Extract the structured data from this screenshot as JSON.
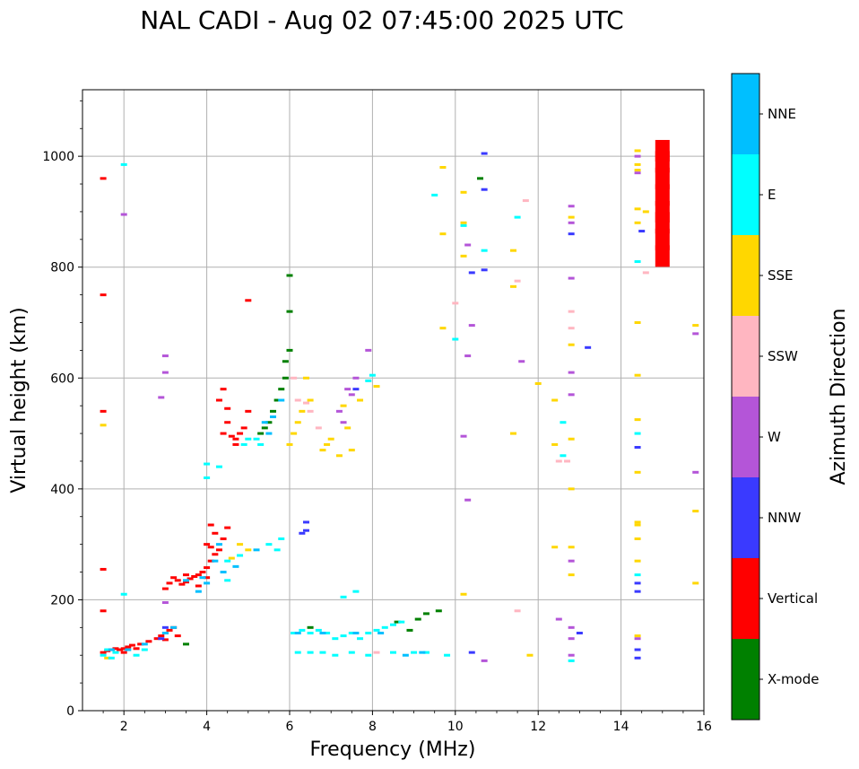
{
  "chart_data": {
    "type": "scatter",
    "title": "NAL CADI - Aug 02 07:45:00 2025 UTC",
    "xlabel": "Frequency (MHz)",
    "ylabel": "Virtual height (km)",
    "xlim": [
      1,
      16
    ],
    "ylim": [
      0,
      1120
    ],
    "grid": true,
    "xticks": [
      2,
      4,
      6,
      8,
      10,
      12,
      14,
      16
    ],
    "yticks": [
      0,
      200,
      400,
      600,
      800,
      1000
    ],
    "colorbar": {
      "label": "Azimuth Direction",
      "categories": [
        {
          "name": "X-mode",
          "color": "#008000"
        },
        {
          "name": "Vertical",
          "color": "#ff0000"
        },
        {
          "name": "NNW",
          "color": "#3a3aff"
        },
        {
          "name": "W",
          "color": "#b455d8"
        },
        {
          "name": "SSW",
          "color": "#ffb6c1"
        },
        {
          "name": "SSE",
          "color": "#ffd700"
        },
        {
          "name": "E",
          "color": "#00ffff"
        },
        {
          "name": "NNE",
          "color": "#00bfff"
        }
      ]
    },
    "series": [
      {
        "name": "Vertical",
        "points": [
          [
            1.5,
            105
          ],
          [
            1.6,
            108
          ],
          [
            1.7,
            110
          ],
          [
            1.8,
            112
          ],
          [
            1.9,
            110
          ],
          [
            2.0,
            112
          ],
          [
            2.1,
            115
          ],
          [
            2.2,
            118
          ],
          [
            2.3,
            112
          ],
          [
            2.0,
            105
          ],
          [
            2.4,
            120
          ],
          [
            2.6,
            125
          ],
          [
            2.8,
            130
          ],
          [
            2.9,
            135
          ],
          [
            3.0,
            140
          ],
          [
            3.1,
            145
          ],
          [
            3.2,
            150
          ],
          [
            3.3,
            135
          ],
          [
            3.0,
            128
          ],
          [
            3.0,
            220
          ],
          [
            3.1,
            230
          ],
          [
            3.2,
            240
          ],
          [
            3.3,
            235
          ],
          [
            3.4,
            228
          ],
          [
            3.5,
            232
          ],
          [
            3.6,
            238
          ],
          [
            3.7,
            242
          ],
          [
            3.8,
            245
          ],
          [
            3.9,
            250
          ],
          [
            4.0,
            258
          ],
          [
            4.1,
            270
          ],
          [
            4.2,
            282
          ],
          [
            4.1,
            295
          ],
          [
            4.0,
            300
          ],
          [
            4.2,
            320
          ],
          [
            4.1,
            335
          ],
          [
            4.3,
            290
          ],
          [
            4.4,
            310
          ],
          [
            4.5,
            330
          ],
          [
            3.8,
            225
          ],
          [
            4.0,
            240
          ],
          [
            3.5,
            245
          ],
          [
            4.4,
            500
          ],
          [
            4.5,
            520
          ],
          [
            4.6,
            495
          ],
          [
            4.7,
            490
          ],
          [
            4.8,
            500
          ],
          [
            4.9,
            510
          ],
          [
            5.0,
            540
          ],
          [
            4.4,
            580
          ],
          [
            4.5,
            545
          ],
          [
            4.3,
            560
          ],
          [
            4.7,
            480
          ],
          [
            1.5,
            960
          ],
          [
            1.5,
            750
          ],
          [
            1.5,
            540
          ],
          [
            1.5,
            255
          ],
          [
            1.5,
            180
          ],
          [
            5.0,
            740
          ],
          [
            15.0,
            990
          ],
          [
            15.0,
            960
          ],
          [
            15.0,
            930
          ],
          [
            15.0,
            900
          ],
          [
            15.0,
            880
          ],
          [
            15.0,
            850
          ],
          [
            15.0,
            820
          ],
          [
            15.0,
            1010
          ]
        ]
      },
      {
        "name": "X-mode",
        "points": [
          [
            5.3,
            500
          ],
          [
            5.4,
            510
          ],
          [
            5.5,
            520
          ],
          [
            5.6,
            540
          ],
          [
            5.7,
            560
          ],
          [
            5.8,
            580
          ],
          [
            5.9,
            600
          ],
          [
            6.0,
            650
          ],
          [
            5.9,
            630
          ],
          [
            6.0,
            720
          ],
          [
            6.0,
            785
          ],
          [
            3.5,
            120
          ],
          [
            8.6,
            160
          ],
          [
            8.9,
            145
          ],
          [
            9.1,
            165
          ],
          [
            9.3,
            175
          ],
          [
            9.6,
            180
          ],
          [
            10.6,
            960
          ],
          [
            6.5,
            150
          ]
        ]
      },
      {
        "name": "NNW",
        "points": [
          [
            2.9,
            130
          ],
          [
            3.0,
            150
          ],
          [
            6.4,
            340
          ],
          [
            6.4,
            325
          ],
          [
            6.3,
            320
          ],
          [
            7.6,
            580
          ],
          [
            10.7,
            1005
          ],
          [
            10.7,
            940
          ],
          [
            10.7,
            795
          ],
          [
            10.4,
            790
          ],
          [
            13.2,
            655
          ],
          [
            14.4,
            215
          ],
          [
            14.4,
            230
          ],
          [
            14.4,
            95
          ],
          [
            14.4,
            110
          ],
          [
            14.5,
            865
          ],
          [
            12.8,
            860
          ],
          [
            14.4,
            475
          ],
          [
            10.4,
            105
          ],
          [
            13.0,
            140
          ]
        ]
      },
      {
        "name": "W",
        "points": [
          [
            3.0,
            610
          ],
          [
            3.0,
            640
          ],
          [
            3.0,
            195
          ],
          [
            2.9,
            565
          ],
          [
            7.4,
            580
          ],
          [
            7.5,
            570
          ],
          [
            7.2,
            540
          ],
          [
            7.3,
            520
          ],
          [
            7.6,
            600
          ],
          [
            7.9,
            650
          ],
          [
            12.8,
            910
          ],
          [
            12.8,
            880
          ],
          [
            12.8,
            780
          ],
          [
            12.8,
            610
          ],
          [
            12.8,
            570
          ],
          [
            12.8,
            270
          ],
          [
            12.8,
            150
          ],
          [
            12.8,
            130
          ],
          [
            14.4,
            1000
          ],
          [
            14.4,
            970
          ],
          [
            14.4,
            130
          ],
          [
            15.8,
            430
          ],
          [
            15.8,
            680
          ],
          [
            10.3,
            840
          ],
          [
            10.4,
            695
          ],
          [
            10.3,
            640
          ],
          [
            10.3,
            380
          ],
          [
            10.2,
            495
          ],
          [
            11.6,
            630
          ],
          [
            12.5,
            165
          ],
          [
            12.8,
            100
          ],
          [
            10.7,
            90
          ],
          [
            2.0,
            895
          ]
        ]
      },
      {
        "name": "SSW",
        "points": [
          [
            6.2,
            560
          ],
          [
            6.4,
            555
          ],
          [
            6.5,
            540
          ],
          [
            6.7,
            510
          ],
          [
            10.0,
            735
          ],
          [
            12.5,
            450
          ],
          [
            12.7,
            450
          ],
          [
            12.8,
            720
          ],
          [
            12.8,
            690
          ],
          [
            11.5,
            775
          ],
          [
            11.7,
            920
          ],
          [
            11.5,
            180
          ],
          [
            14.6,
            790
          ],
          [
            8.1,
            105
          ],
          [
            6.1,
            600
          ]
        ]
      },
      {
        "name": "SSE",
        "points": [
          [
            6.0,
            480
          ],
          [
            6.1,
            500
          ],
          [
            6.2,
            520
          ],
          [
            6.3,
            540
          ],
          [
            6.4,
            600
          ],
          [
            6.5,
            560
          ],
          [
            6.8,
            470
          ],
          [
            6.9,
            480
          ],
          [
            7.0,
            490
          ],
          [
            7.2,
            460
          ],
          [
            7.3,
            550
          ],
          [
            7.4,
            510
          ],
          [
            7.5,
            470
          ],
          [
            7.7,
            560
          ],
          [
            8.1,
            585
          ],
          [
            9.7,
            980
          ],
          [
            9.7,
            860
          ],
          [
            9.7,
            690
          ],
          [
            10.2,
            935
          ],
          [
            10.2,
            880
          ],
          [
            10.2,
            820
          ],
          [
            10.2,
            210
          ],
          [
            11.4,
            830
          ],
          [
            11.4,
            765
          ],
          [
            11.4,
            500
          ],
          [
            12.0,
            590
          ],
          [
            12.4,
            560
          ],
          [
            12.4,
            480
          ],
          [
            12.4,
            295
          ],
          [
            12.8,
            660
          ],
          [
            12.8,
            490
          ],
          [
            12.8,
            400
          ],
          [
            12.8,
            295
          ],
          [
            12.8,
            245
          ],
          [
            12.8,
            890
          ],
          [
            14.4,
            1010
          ],
          [
            14.4,
            985
          ],
          [
            14.4,
            975
          ],
          [
            14.4,
            905
          ],
          [
            14.4,
            880
          ],
          [
            14.4,
            700
          ],
          [
            14.4,
            605
          ],
          [
            14.4,
            525
          ],
          [
            14.4,
            430
          ],
          [
            14.4,
            340
          ],
          [
            14.4,
            335
          ],
          [
            14.4,
            310
          ],
          [
            14.4,
            270
          ],
          [
            14.4,
            135
          ],
          [
            14.6,
            900
          ],
          [
            15.8,
            695
          ],
          [
            15.8,
            360
          ],
          [
            15.8,
            230
          ],
          [
            11.8,
            100
          ],
          [
            1.6,
            95
          ],
          [
            1.5,
            515
          ],
          [
            4.8,
            300
          ],
          [
            5.0,
            290
          ],
          [
            4.6,
            275
          ]
        ]
      },
      {
        "name": "E",
        "points": [
          [
            1.5,
            100
          ],
          [
            1.6,
            110
          ],
          [
            1.7,
            95
          ],
          [
            1.8,
            105
          ],
          [
            2.3,
            100
          ],
          [
            2.5,
            110
          ],
          [
            4.0,
            420
          ],
          [
            4.0,
            445
          ],
          [
            4.3,
            440
          ],
          [
            4.5,
            270
          ],
          [
            4.8,
            280
          ],
          [
            4.9,
            480
          ],
          [
            5.0,
            490
          ],
          [
            5.5,
            300
          ],
          [
            5.7,
            290
          ],
          [
            5.8,
            310
          ],
          [
            6.1,
            140
          ],
          [
            6.3,
            145
          ],
          [
            6.5,
            140
          ],
          [
            6.7,
            145
          ],
          [
            6.9,
            140
          ],
          [
            7.1,
            130
          ],
          [
            7.3,
            135
          ],
          [
            7.5,
            140
          ],
          [
            7.7,
            130
          ],
          [
            7.9,
            140
          ],
          [
            8.1,
            145
          ],
          [
            8.3,
            150
          ],
          [
            8.5,
            155
          ],
          [
            8.7,
            160
          ],
          [
            6.2,
            105
          ],
          [
            6.5,
            105
          ],
          [
            6.8,
            105
          ],
          [
            7.1,
            100
          ],
          [
            7.5,
            105
          ],
          [
            7.9,
            100
          ],
          [
            8.5,
            105
          ],
          [
            9.0,
            105
          ],
          [
            9.3,
            105
          ],
          [
            9.8,
            100
          ],
          [
            7.3,
            205
          ],
          [
            7.6,
            215
          ],
          [
            9.5,
            930
          ],
          [
            10.0,
            670
          ],
          [
            10.2,
            875
          ],
          [
            10.7,
            830
          ],
          [
            12.6,
            520
          ],
          [
            12.6,
            460
          ],
          [
            12.8,
            90
          ],
          [
            14.4,
            500
          ],
          [
            14.4,
            245
          ],
          [
            14.4,
            810
          ],
          [
            11.5,
            890
          ],
          [
            7.9,
            595
          ],
          [
            8.0,
            605
          ],
          [
            2.0,
            985
          ],
          [
            2.0,
            210
          ],
          [
            5.2,
            490
          ],
          [
            5.3,
            480
          ],
          [
            4.5,
            235
          ]
        ]
      },
      {
        "name": "NNE",
        "points": [
          [
            1.7,
            110
          ],
          [
            2.1,
            110
          ],
          [
            2.5,
            120
          ],
          [
            3.0,
            140
          ],
          [
            3.2,
            150
          ],
          [
            3.9,
            240
          ],
          [
            4.0,
            230
          ],
          [
            4.2,
            270
          ],
          [
            4.3,
            300
          ],
          [
            4.7,
            260
          ],
          [
            5.2,
            290
          ],
          [
            5.4,
            520
          ],
          [
            5.5,
            500
          ],
          [
            5.6,
            530
          ],
          [
            5.8,
            560
          ],
          [
            6.2,
            140
          ],
          [
            6.8,
            140
          ],
          [
            7.6,
            140
          ],
          [
            8.2,
            140
          ],
          [
            8.8,
            100
          ],
          [
            9.2,
            105
          ],
          [
            3.8,
            215
          ],
          [
            3.5,
            235
          ],
          [
            4.4,
            250
          ]
        ]
      }
    ]
  }
}
